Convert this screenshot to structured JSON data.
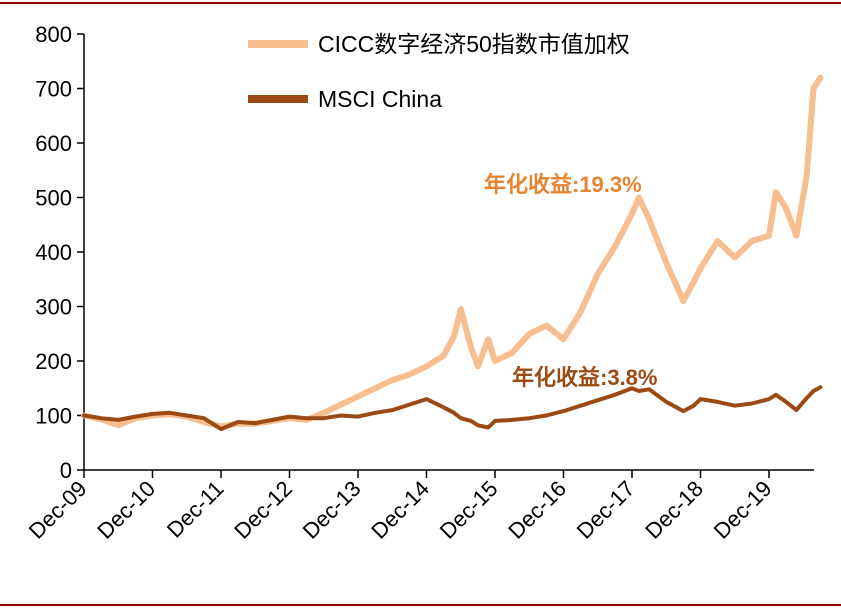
{
  "colors": {
    "rule": "#8b0000",
    "cicc": "#f7bf8f",
    "msci": "#9a4a12",
    "anno_cicc": "#e8832f",
    "anno_msci": "#9a4a12",
    "axis": "#000000"
  },
  "chart_data": {
    "type": "line",
    "title": "",
    "xlabel": "",
    "ylabel": "",
    "ylim": [
      0,
      800
    ],
    "yticks": [
      "0",
      "100",
      "200",
      "300",
      "400",
      "500",
      "600",
      "700",
      "800"
    ],
    "xticks": [
      "Dec-09",
      "Dec-10",
      "Dec-11",
      "Dec-12",
      "Dec-13",
      "Dec-14",
      "Dec-15",
      "Dec-16",
      "Dec-17",
      "Dec-18",
      "Dec-19"
    ],
    "grid": false,
    "legend": "top-right",
    "x": [
      0,
      0.25,
      0.5,
      0.75,
      1.0,
      1.25,
      1.5,
      1.75,
      2.0,
      2.25,
      2.5,
      2.75,
      3.0,
      3.25,
      3.5,
      3.75,
      4.0,
      4.25,
      4.5,
      4.75,
      5.0,
      5.25,
      5.4,
      5.5,
      5.65,
      5.75,
      5.9,
      6.0,
      6.25,
      6.5,
      6.75,
      7.0,
      7.25,
      7.5,
      7.75,
      8.0,
      8.1,
      8.25,
      8.5,
      8.75,
      8.9,
      9.0,
      9.25,
      9.5,
      9.75,
      10.0,
      10.1,
      10.25,
      10.4,
      10.55,
      10.65,
      10.75
    ],
    "series": [
      {
        "name": "CICC数字经济50指数市值加权",
        "values": [
          100,
          93,
          82,
          95,
          100,
          102,
          98,
          88,
          80,
          85,
          85,
          90,
          95,
          92,
          105,
          120,
          135,
          150,
          165,
          175,
          190,
          210,
          245,
          295,
          225,
          190,
          240,
          200,
          215,
          250,
          265,
          240,
          290,
          360,
          410,
          470,
          500,
          460,
          380,
          310,
          345,
          370,
          420,
          390,
          420,
          430,
          510,
          480,
          430,
          540,
          700,
          720
        ]
      },
      {
        "name": "MSCI China",
        "values": [
          100,
          95,
          92,
          98,
          103,
          105,
          100,
          95,
          75,
          88,
          86,
          92,
          98,
          95,
          95,
          100,
          98,
          105,
          110,
          120,
          130,
          115,
          105,
          95,
          90,
          82,
          78,
          90,
          92,
          95,
          100,
          108,
          118,
          128,
          138,
          150,
          145,
          148,
          125,
          108,
          118,
          130,
          125,
          118,
          122,
          130,
          138,
          125,
          110,
          132,
          145,
          152
        ]
      }
    ],
    "annotations": [
      {
        "text": "年化收益:19.3%",
        "series": "CICC数字经济50指数市值加权"
      },
      {
        "text": "年化收益:3.8%",
        "series": "MSCI China"
      }
    ]
  }
}
